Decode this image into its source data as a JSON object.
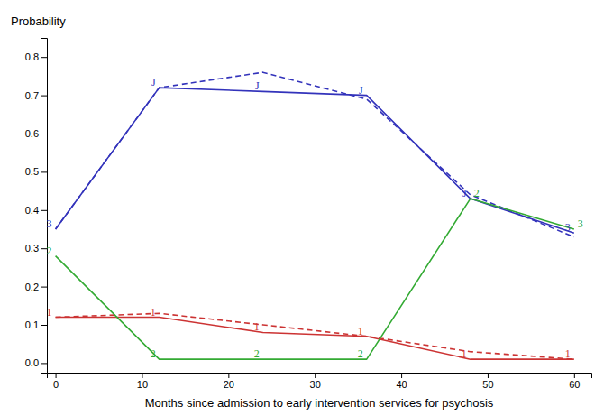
{
  "chart_data": {
    "type": "line",
    "x": [
      0,
      12,
      24,
      36,
      48,
      60
    ],
    "series": [
      {
        "color": "#3333bb",
        "line_style": "solid",
        "values": [
          0.35,
          0.72,
          0.71,
          0.7,
          0.43,
          0.34
        ],
        "labels": [
          "3",
          "J",
          "J",
          "J",
          "J",
          "3"
        ]
      },
      {
        "color": "#3333bb",
        "line_style": "dashed",
        "values": [
          0.35,
          0.72,
          0.76,
          0.69,
          0.44,
          0.33
        ]
      },
      {
        "color": "#cc3333",
        "line_style": "solid",
        "values": [
          0.12,
          0.12,
          0.08,
          0.07,
          0.01,
          0.01
        ],
        "labels": [
          "1",
          "1",
          "1",
          "1",
          "1",
          "1"
        ]
      },
      {
        "color": "#cc3333",
        "line_style": "dashed",
        "values": [
          0.12,
          0.13,
          0.1,
          0.07,
          0.03,
          0.01
        ]
      },
      {
        "color": "#33aa33",
        "line_style": "solid",
        "values": [
          0.28,
          0.01,
          0.01,
          0.01,
          0.43,
          0.35
        ],
        "labels": [
          "2",
          "2",
          "2",
          "2",
          "2",
          "3"
        ]
      }
    ],
    "xlim": [
      -1,
      62
    ],
    "ylim": [
      -0.025,
      0.85
    ],
    "xticks": [
      0,
      10,
      20,
      30,
      40,
      50,
      60
    ],
    "yticks": [
      {
        "value": 0.0,
        "label": "0.0"
      },
      0.1,
      0.2,
      0.3,
      0.4,
      0.5,
      0.6,
      0.7,
      0.8
    ],
    "x_label": "Months since admission to early intervention services for psychosis",
    "y_label": "Probability",
    "grid": false
  }
}
